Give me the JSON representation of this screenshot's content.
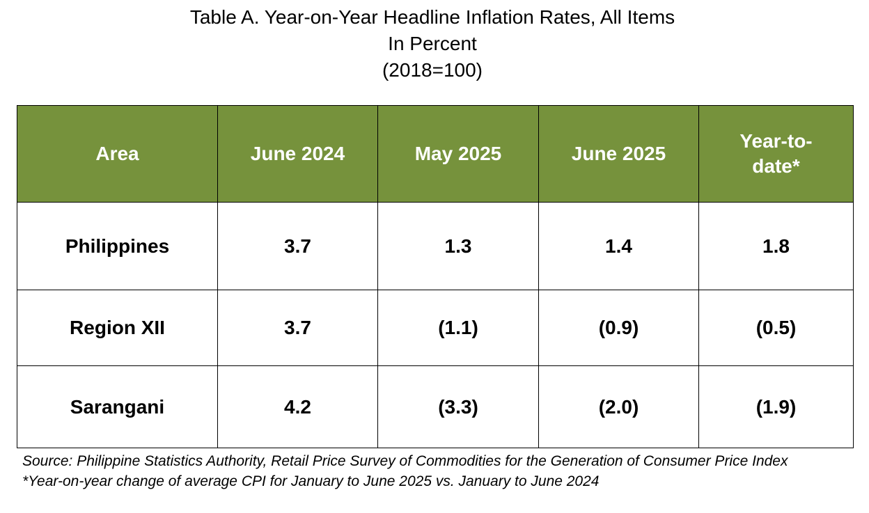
{
  "title": {
    "line1": "Table A. Year-on-Year Headline Inflation Rates, All Items",
    "line2": "In Percent",
    "line3": "(2018=100)"
  },
  "table": {
    "headers": [
      "Area",
      "June 2024",
      "May 2025",
      "June 2025",
      "Year-to-date*"
    ],
    "rows": [
      [
        "Philippines",
        "3.7",
        "1.3",
        "1.4",
        "1.8"
      ],
      [
        "Region XII",
        "3.7",
        "(1.1)",
        "(0.9)",
        "(0.5)"
      ],
      [
        "Sarangani",
        "4.2",
        "(3.3)",
        "(2.0)",
        "(1.9)"
      ]
    ]
  },
  "notes": {
    "source": "Source: Philippine Statistics Authority, Retail Price Survey of Commodities for the Generation of Consumer Price Index",
    "footnote": "*Year-on-year change of average CPI for January to June 2025 vs. January to June 2024"
  },
  "colors": {
    "header_background": "#76923c",
    "header_text": "#ffffff",
    "border": "#000000"
  }
}
